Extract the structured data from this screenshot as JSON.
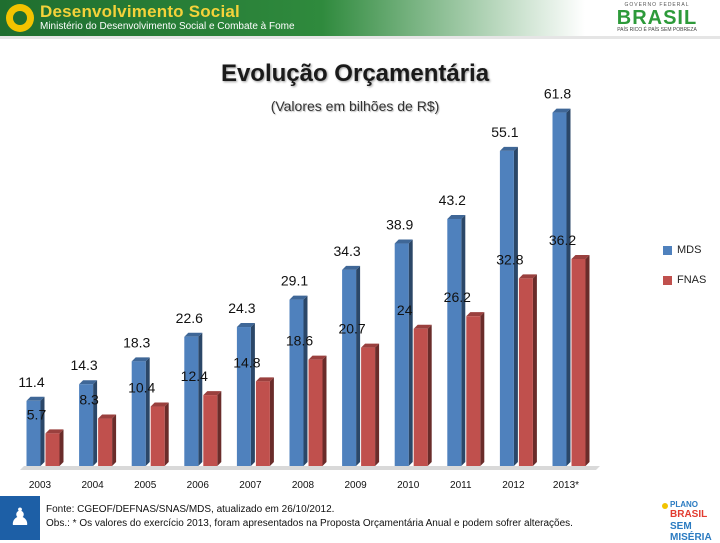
{
  "header": {
    "brand_title": "Desenvolvimento Social",
    "brand_subtitle": "Ministério do Desenvolvimento Social e Combate à Fome",
    "gov_top": "GOVERNO FEDERAL",
    "gov_name": "BRASIL",
    "gov_slogan": "PAÍS RICO É PAÍS SEM POBREZA"
  },
  "chart_data": {
    "type": "bar",
    "title": "Evolução Orçamentária",
    "subtitle": "(Valores em bilhões de R$)",
    "categories": [
      "2003",
      "2004",
      "2005",
      "2006",
      "2007",
      "2008",
      "2009",
      "2010",
      "2011",
      "2012",
      "2013*"
    ],
    "series": [
      {
        "name": "MDS",
        "color": "#4f81bd",
        "values": [
          11.4,
          14.3,
          18.3,
          22.6,
          24.3,
          29.1,
          34.3,
          38.9,
          43.2,
          55.1,
          61.8
        ]
      },
      {
        "name": "FNAS",
        "color": "#c0504d",
        "values": [
          5.7,
          8.3,
          10.4,
          12.4,
          14.8,
          18.6,
          20.7,
          24,
          26.2,
          32.8,
          36.2
        ]
      }
    ],
    "ylim": [
      0,
      64
    ],
    "grid": false,
    "legend": "right"
  },
  "footer": {
    "source": "Fonte: CGEOF/DEFNAS/SNAS/MDS, atualizado em 26/10/2012.",
    "note": "Obs.: * Os valores do exercício 2013, foram apresentados na Proposta Orçamentária Anual e podem sofrer alterações.",
    "bsm_1": "PLANO",
    "bsm_2": "BRASIL",
    "bsm_3": "SEM MISÉRIA"
  },
  "icons": {
    "footer_logo": "people-icon"
  }
}
